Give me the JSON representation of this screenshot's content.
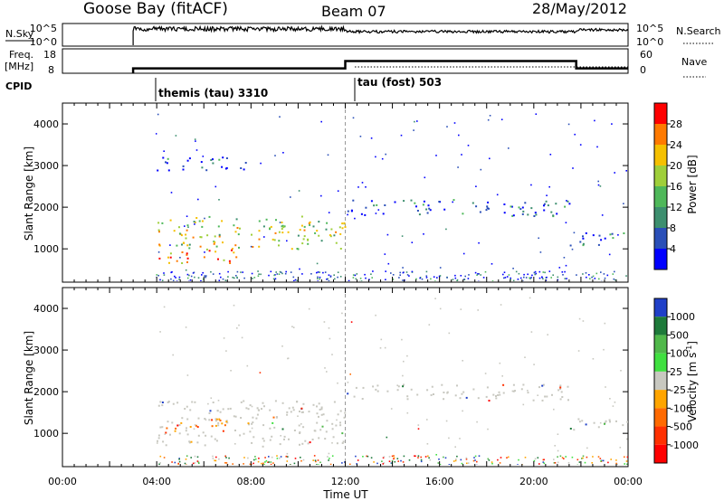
{
  "header": {
    "station": "Goose Bay (fitACF)",
    "beam": "Beam 07",
    "date": "28/May/2012"
  },
  "nsky_panel": {
    "label": "N.Sky",
    "ticks": [
      "10^5",
      "10^0"
    ],
    "right_label": "N.Search",
    "right_ticks": [
      "10^5",
      "10^0"
    ]
  },
  "freq_panel": {
    "label_line1": "Freq.",
    "label_line2": "[MHz]",
    "ticks": [
      "18",
      "8"
    ],
    "right_label": "Nave",
    "right_ticks": [
      "60",
      "0"
    ],
    "freq_steps": [
      {
        "start": 3.0,
        "end": 12.0,
        "value": 10
      },
      {
        "start": 12.0,
        "end": 21.8,
        "value": 13
      },
      {
        "start": 21.8,
        "end": 24.0,
        "value": 10
      }
    ]
  },
  "cpid": {
    "label": "CPID",
    "segments": [
      {
        "start": 3.0,
        "text": "themis (tau) 3310"
      },
      {
        "start": 12.0,
        "text": "tau (fost) 503"
      }
    ]
  },
  "chart_data": [
    {
      "type": "heatmap",
      "name": "power",
      "ylabel": "Slant Range [km]",
      "xlim": [
        0,
        24
      ],
      "ylim": [
        200,
        4500
      ],
      "yticks": [
        "1000",
        "2000",
        "3000",
        "4000"
      ],
      "colorbar": {
        "label": "Power [dB]",
        "ticks": [
          "4",
          "8",
          "12",
          "16",
          "20",
          "24",
          "28"
        ],
        "colors": [
          "#0000ff",
          "#2a4fb8",
          "#3d8f6f",
          "#4fb85a",
          "#9fcf3a",
          "#f5c000",
          "#ff7a00",
          "#ff0000"
        ]
      },
      "echo_regions": [
        {
          "t0": 3.0,
          "t1": 12.0,
          "r0": 1000,
          "r1": 1800,
          "level": 4
        },
        {
          "t0": 3.2,
          "t1": 7.5,
          "r0": 650,
          "r1": 1000,
          "level": 6
        },
        {
          "t0": 12.0,
          "t1": 21.5,
          "r0": 1800,
          "r1": 2200,
          "level": 1
        },
        {
          "t0": 21.5,
          "t1": 24.0,
          "r0": 1100,
          "r1": 1450,
          "level": 1
        },
        {
          "t0": 4.0,
          "t1": 8.0,
          "r0": 2900,
          "r1": 3250,
          "level": 1
        }
      ]
    },
    {
      "type": "heatmap",
      "name": "velocity",
      "ylabel": "Slant Range [km]",
      "xlabel": "Time UT",
      "xlim": [
        0,
        24
      ],
      "ylim": [
        200,
        4500
      ],
      "yticks": [
        "1000",
        "2000",
        "3000",
        "4000"
      ],
      "xticks": [
        "00:00",
        "04:00",
        "08:00",
        "12:00",
        "16:00",
        "20:00",
        "00:00"
      ],
      "colorbar": {
        "label": "Velocity [m s^-1]",
        "ticks": [
          "1000",
          "500",
          "100",
          "25",
          "-25",
          "-100",
          "-500",
          "-1000"
        ],
        "colors": [
          "#2040c8",
          "#1e7a3a",
          "#50b84a",
          "#40e040",
          "#c8c8c0",
          "#ffa500",
          "#ff6a00",
          "#ff3000",
          "#ff0000"
        ]
      },
      "echo_regions": [
        {
          "t0": 3.0,
          "t1": 12.0,
          "r0": 700,
          "r1": 1800,
          "level": "ground"
        },
        {
          "t0": 3.4,
          "t1": 7.0,
          "r0": 1000,
          "r1": 1400,
          "level": "negative"
        },
        {
          "t0": 12.0,
          "t1": 21.5,
          "r0": 1800,
          "r1": 2200,
          "level": "ground"
        },
        {
          "t0": 21.5,
          "t1": 24.0,
          "r0": 1100,
          "r1": 1450,
          "level": "ground"
        }
      ]
    }
  ]
}
